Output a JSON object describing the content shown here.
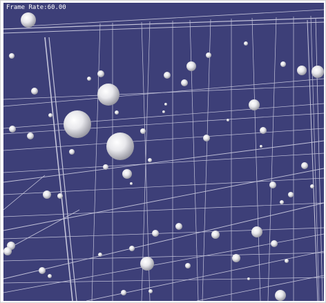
{
  "overlay": {
    "frame_rate_text": "Frame Rate:60.00"
  },
  "scene": {
    "background_color": "#3d3f78",
    "grid_color": "#dcdcec",
    "sphere_highlight": "#ffffff",
    "sphere_shadow": "#8f8f9a"
  }
}
